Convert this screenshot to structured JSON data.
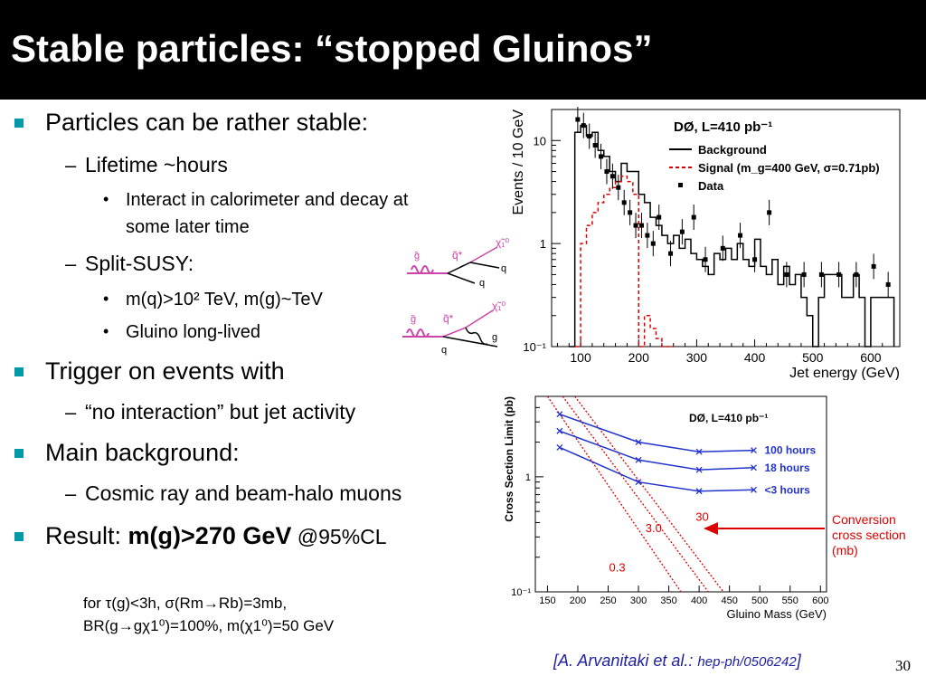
{
  "slide": {
    "title": "Stable particles: “stopped Gluinos”",
    "page_number": "30"
  },
  "bullets": {
    "b1": "Particles can be rather stable:",
    "b1_1": "Lifetime ~hours",
    "b1_1_1a": "Interact in calorimeter and decay at",
    "b1_1_1b": "some later time",
    "b1_2": "Split-SUSY:",
    "b1_2_1": "m(q)>10² TeV, m(g)~TeV",
    "b1_2_2": "Gluino long-lived",
    "b2": "Trigger on events with",
    "b2_1": "“no interaction” but jet activity",
    "b3": "Main background:",
    "b3_1": "Cosmic ray and beam-halo muons",
    "b4_prefix": "Result: ",
    "b4_bold": "m(g)>270 GeV",
    "b4_suffix": " @95%CL"
  },
  "footnote": {
    "line1": "for τ(g)<3h, σ(Rm→Rb)=3mb,",
    "line2": "BR(g→gχ1⁰)=100%, m(χ1⁰)=50 GeV"
  },
  "citation": {
    "authors": "[A. Arvanitaki et al.: ",
    "ref": "hep-ph/0506242",
    "close": "]"
  },
  "diagrams": {
    "top": {
      "g_tilde": "g̃",
      "q_tilde": "q̃*",
      "chi": "χ̃₁⁰",
      "q_out": "q",
      "q2": "q"
    },
    "bottom": {
      "g_tilde": "g̃",
      "q_tilde": "q̃*",
      "chi": "χ̃₁⁰",
      "g_out": "g",
      "q2": "q"
    }
  },
  "chart_data": [
    {
      "type": "line",
      "experiment": "DØ, L=410 pb⁻¹",
      "xlabel": "Jet energy (GeV)",
      "ylabel": "Events / 10 GeV",
      "yscale": "log",
      "xlim": [
        50,
        650
      ],
      "ylim": [
        0.1,
        20
      ],
      "x_ticks": [
        "100",
        "200",
        "300",
        "400",
        "500",
        "600"
      ],
      "y_ticks": [
        "10⁻¹",
        "1",
        "10"
      ],
      "legend": [
        {
          "name": "Background",
          "style": "solid",
          "color": "#000000"
        },
        {
          "name": "Signal (m_g=400 GeV, σ=0.71pb)",
          "style": "dashed",
          "color": "#dd0000"
        },
        {
          "name": "Data",
          "style": "marker",
          "color": "#000000"
        }
      ],
      "series": [
        {
          "name": "Background",
          "bin_edges": [
            80,
            90,
            100,
            110,
            120,
            130,
            140,
            150,
            160,
            170,
            180,
            190,
            200,
            210,
            220,
            230,
            240,
            250,
            260,
            270,
            280,
            290,
            300,
            310,
            320,
            330,
            340,
            350,
            360,
            370,
            380,
            390,
            400,
            410,
            420,
            430,
            440,
            450,
            460,
            470,
            480,
            490,
            500,
            510,
            520,
            530,
            540,
            550,
            560,
            570,
            580,
            590,
            600,
            610,
            620,
            630,
            640
          ],
          "values": [
            0.1,
            12,
            14,
            11,
            12,
            8,
            7,
            5,
            4,
            6,
            5,
            5,
            3,
            2.5,
            1.8,
            1.5,
            1.2,
            1,
            1.2,
            0.9,
            1.1,
            0.8,
            0.7,
            0.6,
            0.5,
            0.8,
            0.7,
            0.9,
            0.7,
            1,
            0.7,
            0.6,
            1.1,
            0.6,
            0.5,
            0.7,
            0.4,
            0.6,
            0.4,
            0.5,
            0.3,
            0.2,
            0.1,
            0.3,
            0.5,
            0.5,
            0.5,
            0.3,
            0.3,
            0.5,
            0.3,
            0.1,
            0.3,
            0.3,
            0.3,
            0.3
          ]
        },
        {
          "name": "Signal (m_g=400 GeV, σ=0.71pb)",
          "bin_edges": [
            90,
            100,
            110,
            120,
            130,
            140,
            150,
            160,
            170,
            180,
            190,
            200,
            210,
            220,
            230,
            240,
            250,
            260
          ],
          "values": [
            0.1,
            1,
            1.5,
            2,
            2.5,
            3,
            3.5,
            4,
            4.5,
            4,
            3,
            0.1,
            0.2,
            0.15,
            0.12,
            0.1,
            0.1
          ]
        },
        {
          "name": "Data",
          "x": [
            95,
            105,
            115,
            125,
            135,
            145,
            155,
            165,
            175,
            185,
            195,
            205,
            215,
            225,
            235,
            255,
            275,
            295,
            315,
            345,
            375,
            400,
            425,
            455,
            485,
            515,
            545,
            575,
            605,
            630
          ],
          "y": [
            16,
            14,
            11,
            9,
            7,
            5,
            4.5,
            3.5,
            2.5,
            2,
            1.5,
            1.5,
            1.2,
            1,
            1.8,
            0.8,
            1.3,
            1.8,
            0.7,
            0.9,
            1.2,
            0.7,
            2,
            0.5,
            0.5,
            0.5,
            0.5,
            0.5,
            0.6,
            0.4
          ]
        }
      ]
    },
    {
      "type": "line",
      "experiment": "DØ, L=410 pb⁻¹",
      "xlabel": "Gluino Mass (GeV)",
      "ylabel": "Cross Section Limit (pb)",
      "yscale": "log",
      "xlim": [
        130,
        610
      ],
      "ylim": [
        0.1,
        5
      ],
      "x_ticks": [
        "150",
        "200",
        "250",
        "300",
        "350",
        "400",
        "450",
        "500",
        "550",
        "600"
      ],
      "y_ticks": [
        "10⁻¹",
        "1"
      ],
      "series": [
        {
          "name": "100 hours",
          "x": [
            170,
            300,
            400,
            490
          ],
          "y": [
            3.5,
            2.0,
            1.65,
            1.7
          ]
        },
        {
          "name": "18 hours",
          "x": [
            170,
            300,
            400,
            490
          ],
          "y": [
            2.5,
            1.4,
            1.15,
            1.2
          ]
        },
        {
          "name": "<3 hours",
          "x": [
            170,
            300,
            400,
            490
          ],
          "y": [
            1.8,
            0.9,
            0.75,
            0.77
          ]
        }
      ],
      "conversion_lines": [
        {
          "label": "30",
          "x": [
            195,
            440
          ],
          "y": [
            5,
            0.1
          ]
        },
        {
          "label": "3.0",
          "x": [
            175,
            415
          ],
          "y": [
            5,
            0.1
          ]
        },
        {
          "label": "0.3",
          "x": [
            150,
            370
          ],
          "y": [
            5,
            0.1
          ]
        }
      ],
      "annotation": {
        "text": [
          "Conversion",
          "cross section",
          "(mb)"
        ],
        "color": "#dd0000"
      }
    }
  ]
}
